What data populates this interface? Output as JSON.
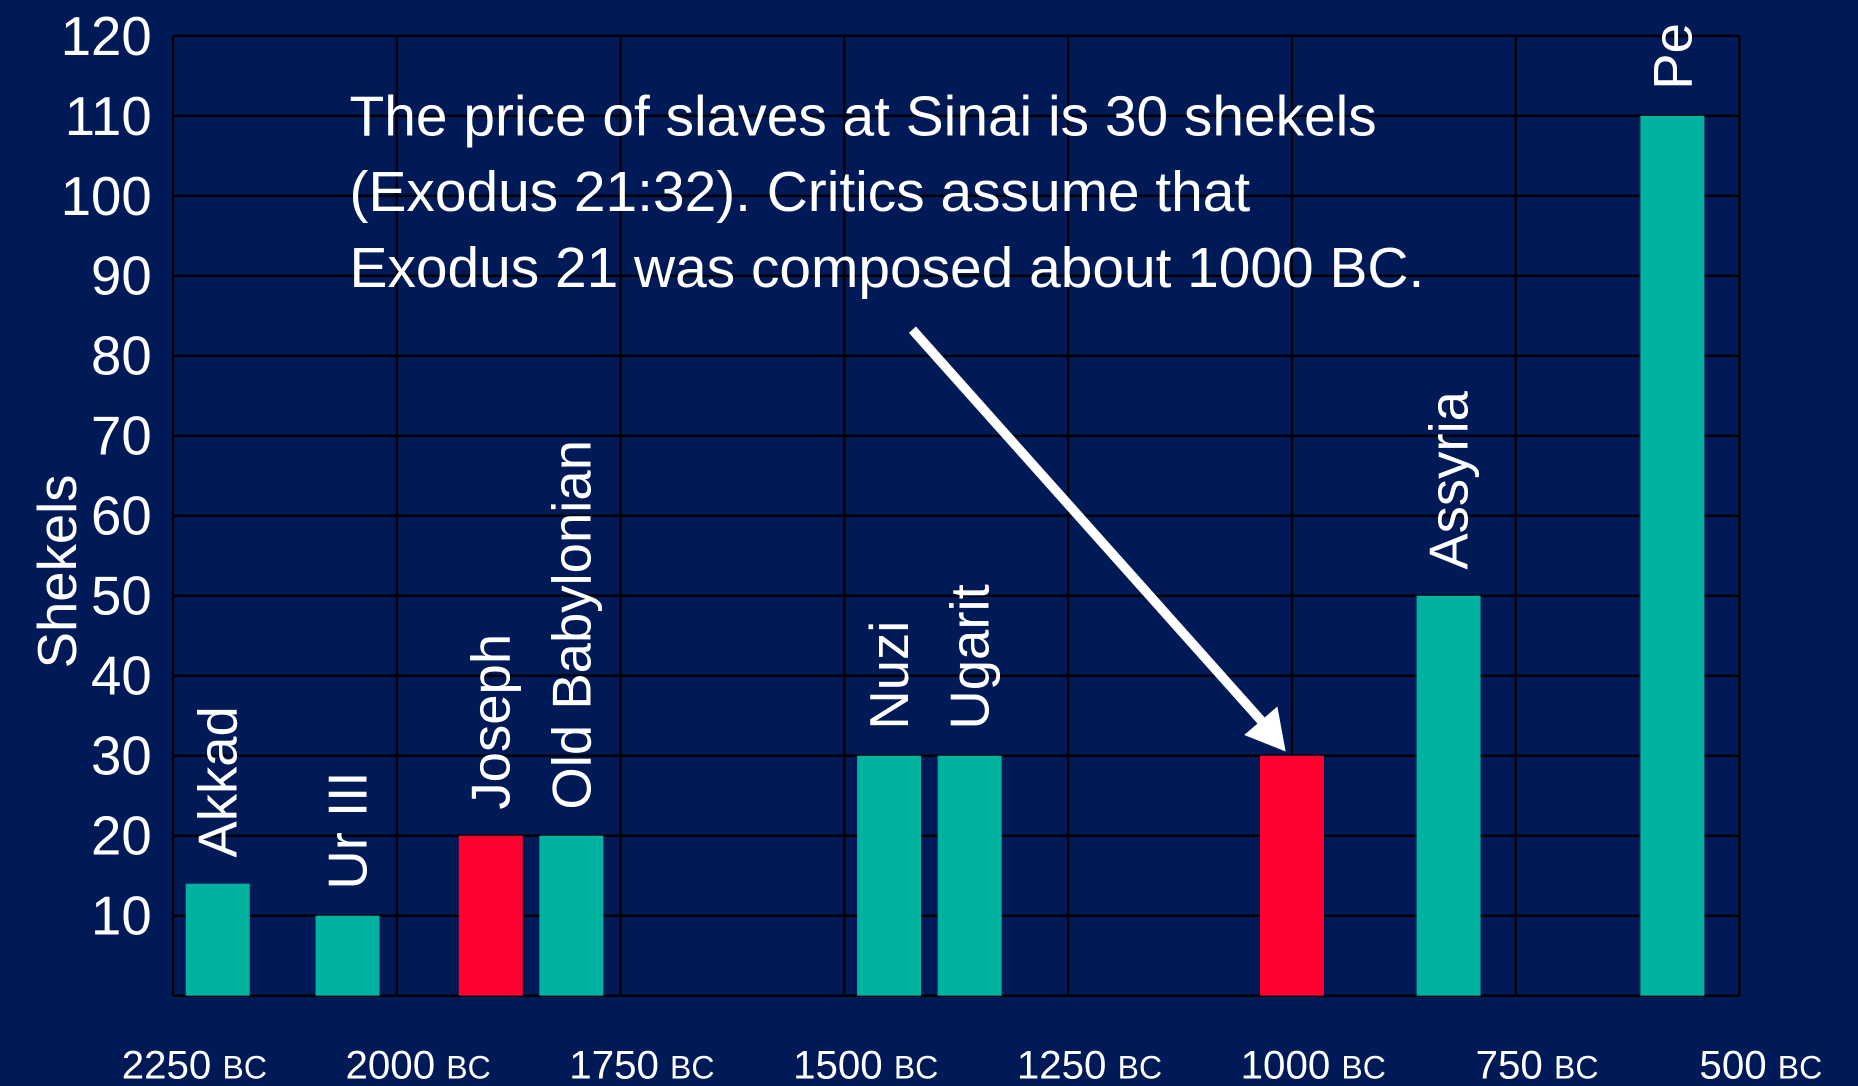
{
  "chart_data": {
    "type": "bar",
    "y_label": "Shekels",
    "annotation": [
      "The price of slaves at Sinai is 30 shekels",
      "(Exodus 21:32).  Critics assume that",
      "Exodus 21 was composed about 1000 BC."
    ],
    "categories": [
      "Akkad",
      "Ur III",
      "Joseph",
      "Old Babylonian",
      "Nuzi",
      "Ugarit",
      null,
      "Assyria",
      "Pe"
    ],
    "x": [
      2200,
      2055,
      1895,
      1805,
      1450,
      1360,
      1000,
      825,
      575
    ],
    "values": [
      14,
      10,
      20,
      20,
      30,
      30,
      30,
      50,
      110
    ],
    "colors": [
      "#00b2a0",
      "#00b2a0",
      "#ff0030",
      "#00b2a0",
      "#00b2a0",
      "#00b2a0",
      "#ff0030",
      "#00b2a0",
      "#00b2a0"
    ],
    "xlim": [
      2250,
      500
    ],
    "xticks": [
      {
        "value": 2250,
        "label": "2250 BC"
      },
      {
        "value": 2000,
        "label": "2000 BC"
      },
      {
        "value": 1750,
        "label": "1750 BC"
      },
      {
        "value": 1500,
        "label": "1500 BC"
      },
      {
        "value": 1250,
        "label": "1250 BC"
      },
      {
        "value": 1000,
        "label": "1000 BC"
      },
      {
        "value": 750,
        "label": "750 BC"
      },
      {
        "value": 500,
        "label": "500 BC"
      }
    ],
    "ylim": [
      0,
      120
    ],
    "yticks": [
      10,
      20,
      30,
      40,
      50,
      60,
      70,
      80,
      90,
      100,
      110,
      120
    ],
    "grid": true
  }
}
